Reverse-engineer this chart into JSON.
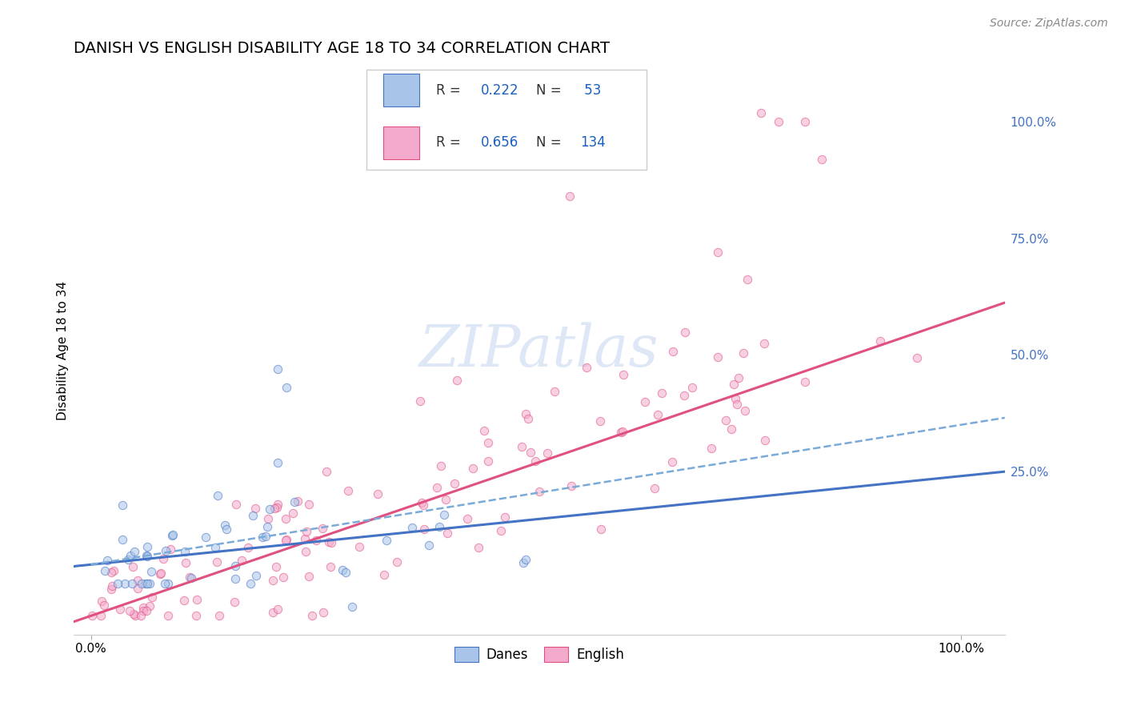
{
  "title": "DANISH VS ENGLISH DISABILITY AGE 18 TO 34 CORRELATION CHART",
  "source": "Source: ZipAtlas.com",
  "ylabel": "Disability Age 18 to 34",
  "xlim": [
    -0.02,
    1.05
  ],
  "ylim": [
    -0.1,
    1.12
  ],
  "grid_color": "#cccccc",
  "background_color": "#ffffff",
  "danes_color": "#a8c4e8",
  "danes_edge_color": "#4472c4",
  "english_color": "#f4aacc",
  "english_edge_color": "#e05080",
  "danes_line_color": "#4472c4",
  "english_line_color": "#e05080",
  "danes_dashed_color": "#7aaad8",
  "scatter_alpha": 0.55,
  "title_fontsize": 14,
  "axis_label_fontsize": 11,
  "tick_fontsize": 11,
  "legend_fontsize": 12,
  "source_fontsize": 10,
  "watermark_color": "#c8d8f0",
  "watermark_fontsize": 52,
  "danes_R": "0.222",
  "danes_N": "53",
  "english_R": "0.656",
  "english_N": "134",
  "legend_text_color": "#333333",
  "legend_value_color": "#1a60c0",
  "right_tick_color": "#4472c4"
}
